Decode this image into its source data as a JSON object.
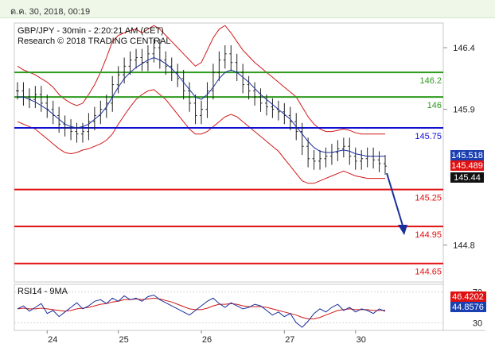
{
  "header": {
    "timestamp": "ต.ค. 30, 2018, 00:19"
  },
  "chart_data": {
    "type": "line",
    "title": "GBP/JPY - 30min - 2:20:21 AM (CET)",
    "subtitle": "Research © 2018 TRADING CENTRAL",
    "ylim": [
      144.5,
      146.6
    ],
    "yticks": [
      {
        "value": 146.4,
        "label": "146.4"
      },
      {
        "value": 145.9,
        "label": "145.9"
      },
      {
        "value": 144.8,
        "label": "144.8"
      }
    ],
    "xticks": [
      "24",
      "25",
      "26",
      "27",
      "30"
    ],
    "levels": [
      {
        "value": 146.2,
        "label": "146.2",
        "color": "#2e9a1e"
      },
      {
        "value": 146.0,
        "label": "146",
        "color": "#2e9a1e"
      },
      {
        "value": 145.75,
        "label": "145.75",
        "color": "#1010d0"
      },
      {
        "value": 145.25,
        "label": "145.25",
        "color": "#e01010"
      },
      {
        "value": 144.95,
        "label": "144.95",
        "color": "#e01010"
      },
      {
        "value": 144.65,
        "label": "144.65",
        "color": "#e01010"
      }
    ],
    "price_badges": [
      {
        "label": "145.518",
        "color": "#1a3fb0"
      },
      {
        "label": "145.489",
        "color": "#e01010"
      },
      {
        "label": "145.44",
        "color": "#111111"
      }
    ],
    "forecast_target": 144.95,
    "series": [
      {
        "values": [
          146.05,
          146.0,
          145.98,
          146.02,
          145.95,
          145.9,
          145.85,
          145.78,
          145.75,
          145.72,
          145.7,
          145.72,
          145.8,
          145.85,
          145.9,
          145.95,
          146.1,
          146.18,
          146.25,
          146.3,
          146.32,
          146.28,
          146.35,
          146.4,
          146.3,
          146.25,
          146.2,
          146.15,
          146.05,
          145.95,
          145.85,
          145.9,
          146.05,
          146.2,
          146.3,
          146.35,
          146.28,
          146.2,
          146.1,
          146.05,
          146.0,
          145.95,
          145.92,
          145.9,
          145.88,
          145.85,
          145.8,
          145.72,
          145.6,
          145.5,
          145.48,
          145.5,
          145.52,
          145.55,
          145.58,
          145.6,
          145.52,
          145.48,
          145.5,
          145.52,
          145.49,
          145.46,
          145.44
        ]
      },
      {
        "values": [
          146.0,
          146.0,
          145.98,
          145.96,
          145.93,
          145.9,
          145.86,
          145.82,
          145.78,
          145.76,
          145.75,
          145.76,
          145.78,
          145.82,
          145.86,
          145.92,
          146.0,
          146.08,
          146.15,
          146.2,
          146.24,
          146.27,
          146.3,
          146.32,
          146.3,
          146.27,
          146.23,
          146.18,
          146.12,
          146.06,
          146.0,
          145.98,
          146.02,
          146.08,
          146.15,
          146.2,
          146.22,
          146.2,
          146.16,
          146.12,
          146.07,
          146.02,
          145.98,
          145.94,
          145.9,
          145.86,
          145.82,
          145.76,
          145.7,
          145.64,
          145.59,
          145.56,
          145.55,
          145.55,
          145.56,
          145.57,
          145.56,
          145.54,
          145.53,
          145.52,
          145.52,
          145.52,
          145.52
        ]
      }
    ],
    "bands": {
      "upper": [
        146.25,
        146.22,
        146.2,
        146.18,
        146.15,
        146.12,
        146.08,
        146.02,
        145.98,
        145.95,
        145.93,
        145.95,
        146.02,
        146.1,
        146.2,
        146.32,
        146.45,
        146.5,
        146.52,
        146.54,
        146.55,
        146.52,
        146.55,
        146.58,
        146.55,
        146.5,
        146.45,
        146.4,
        146.35,
        146.3,
        146.25,
        146.28,
        146.38,
        146.48,
        146.55,
        146.58,
        146.52,
        146.45,
        146.38,
        146.33,
        146.28,
        146.24,
        146.2,
        146.16,
        146.12,
        146.08,
        146.04,
        146.0,
        145.92,
        145.84,
        145.78,
        145.74,
        145.72,
        145.72,
        145.73,
        145.74,
        145.73,
        145.71,
        145.7,
        145.7,
        145.7,
        145.7,
        145.7
      ],
      "lower": [
        145.8,
        145.78,
        145.76,
        145.74,
        145.7,
        145.66,
        145.62,
        145.58,
        145.55,
        145.54,
        145.55,
        145.57,
        145.58,
        145.6,
        145.62,
        145.65,
        145.7,
        145.78,
        145.85,
        145.92,
        145.98,
        146.02,
        146.05,
        146.06,
        146.02,
        145.98,
        145.92,
        145.86,
        145.8,
        145.74,
        145.7,
        145.7,
        145.72,
        145.76,
        145.8,
        145.84,
        145.86,
        145.84,
        145.8,
        145.76,
        145.72,
        145.68,
        145.64,
        145.6,
        145.56,
        145.5,
        145.44,
        145.38,
        145.32,
        145.3,
        145.3,
        145.32,
        145.34,
        145.36,
        145.38,
        145.4,
        145.38,
        145.36,
        145.35,
        145.34,
        145.34,
        145.34,
        145.34
      ]
    },
    "rsi_panel": {
      "title": "RSI14 - 9MA",
      "ylim": [
        20,
        80
      ],
      "yticks": [
        {
          "value": 70,
          "label": "70"
        },
        {
          "value": 30,
          "label": "30"
        }
      ],
      "badges": [
        {
          "label": "46.4202",
          "color": "#e01010"
        },
        {
          "label": "44.8576",
          "color": "#1a3fb0"
        }
      ],
      "rsi": [
        48,
        52,
        45,
        50,
        55,
        42,
        46,
        38,
        44,
        50,
        56,
        48,
        52,
        58,
        60,
        55,
        62,
        58,
        65,
        60,
        62,
        58,
        64,
        66,
        60,
        56,
        52,
        48,
        44,
        40,
        46,
        52,
        58,
        62,
        55,
        50,
        56,
        52,
        48,
        50,
        54,
        52,
        46,
        40,
        44,
        38,
        42,
        30,
        24,
        32,
        42,
        48,
        44,
        50,
        54,
        46,
        50,
        44,
        48,
        46,
        42,
        48,
        44.86
      ],
      "ma": [
        48,
        49,
        48,
        48,
        49,
        48,
        47,
        46,
        45,
        46,
        48,
        49,
        50,
        52,
        54,
        55,
        57,
        58,
        60,
        60,
        61,
        60,
        61,
        62,
        61,
        59,
        57,
        54,
        51,
        48,
        47,
        47,
        49,
        52,
        54,
        54,
        55,
        54,
        52,
        51,
        51,
        51,
        50,
        48,
        46,
        44,
        42,
        40,
        37,
        35,
        35,
        37,
        40,
        43,
        46,
        47,
        48,
        47,
        47,
        47,
        46,
        46,
        46.42
      ]
    }
  }
}
